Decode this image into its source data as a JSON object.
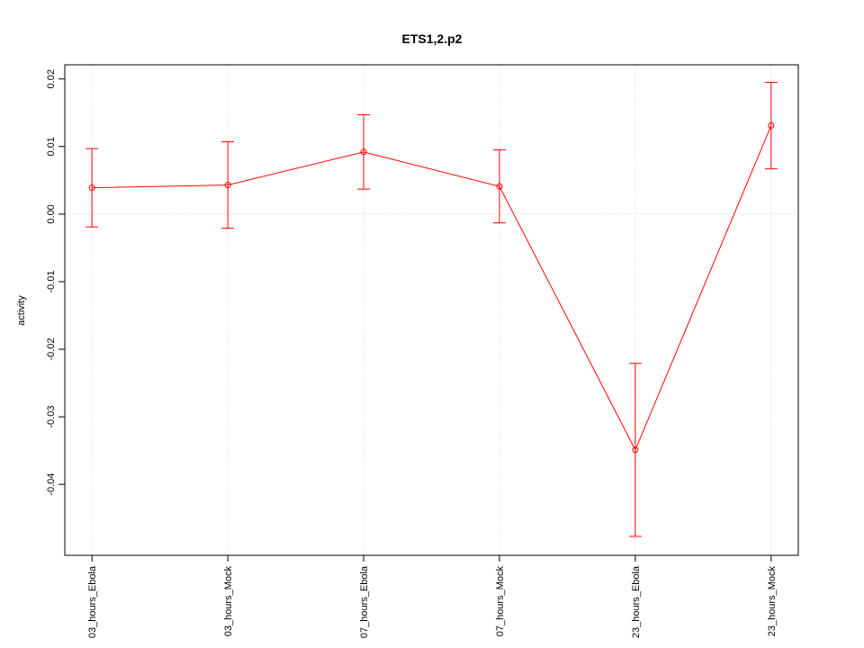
{
  "chart_data": {
    "type": "line",
    "title": "ETS1,2.p2",
    "y_label": "activity",
    "categories": [
      "03_hours_Ebola",
      "03_hours_Mock",
      "07_hours_Ebola",
      "07_hours_Mock",
      "23_hours_Ebola",
      "23_hours_Mock"
    ],
    "series": [
      {
        "name": "activity",
        "color": "#ff0000",
        "values": [
          0.0039,
          0.0043,
          0.0092,
          0.0041,
          -0.0349,
          0.0131
        ],
        "errors": [
          0.0058,
          0.0064,
          0.0055,
          0.0054,
          0.0128,
          0.0064
        ]
      }
    ],
    "xlim": [
      0.8,
      6.2
    ],
    "ylim": [
      -0.0505,
      0.0221
    ],
    "yticks": [
      -0.04,
      -0.03,
      -0.02,
      -0.01,
      {
        "value": 0,
        "label": "0.00"
      },
      0.01,
      0.02
    ],
    "hlines": [
      0
    ],
    "grid": true
  }
}
